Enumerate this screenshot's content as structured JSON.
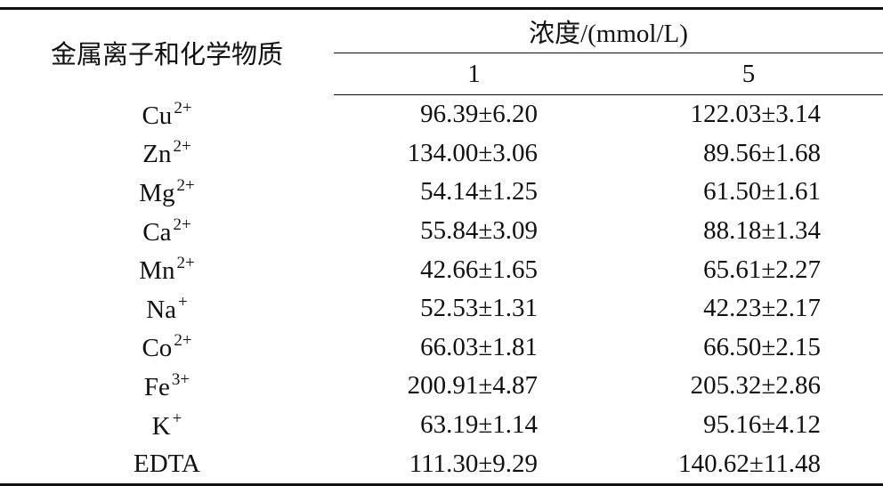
{
  "table": {
    "header": {
      "substance": "金属离子和化学物质",
      "concentration": "浓度/(mmol/L)",
      "columns": [
        "1",
        "5"
      ]
    },
    "rows": [
      {
        "ion": "Cu",
        "charge": "2+",
        "values": [
          "96.39±6.20",
          "122.03±3.14"
        ]
      },
      {
        "ion": "Zn",
        "charge": "2+",
        "values": [
          "134.00±3.06",
          "89.56±1.68"
        ]
      },
      {
        "ion": "Mg",
        "charge": "2+",
        "values": [
          "54.14±1.25",
          "61.50±1.61"
        ]
      },
      {
        "ion": "Ca",
        "charge": "2+",
        "values": [
          "55.84±3.09",
          "88.18±1.34"
        ]
      },
      {
        "ion": "Mn",
        "charge": "2+",
        "values": [
          "42.66±1.65",
          "65.61±2.27"
        ]
      },
      {
        "ion": "Na",
        "charge": "+",
        "values": [
          "52.53±1.31",
          "42.23±2.17"
        ]
      },
      {
        "ion": "Co",
        "charge": "2+",
        "values": [
          "66.03±1.81",
          "66.50±2.15"
        ]
      },
      {
        "ion": "Fe",
        "charge": "3+",
        "values": [
          "200.91±4.87",
          "205.32±2.86"
        ]
      },
      {
        "ion": "K",
        "charge": "+",
        "values": [
          "63.19±1.14",
          "95.16±4.12"
        ]
      },
      {
        "ion": "EDTA",
        "charge": null,
        "values": [
          "111.30±9.29",
          "140.62±11.48"
        ]
      }
    ]
  }
}
